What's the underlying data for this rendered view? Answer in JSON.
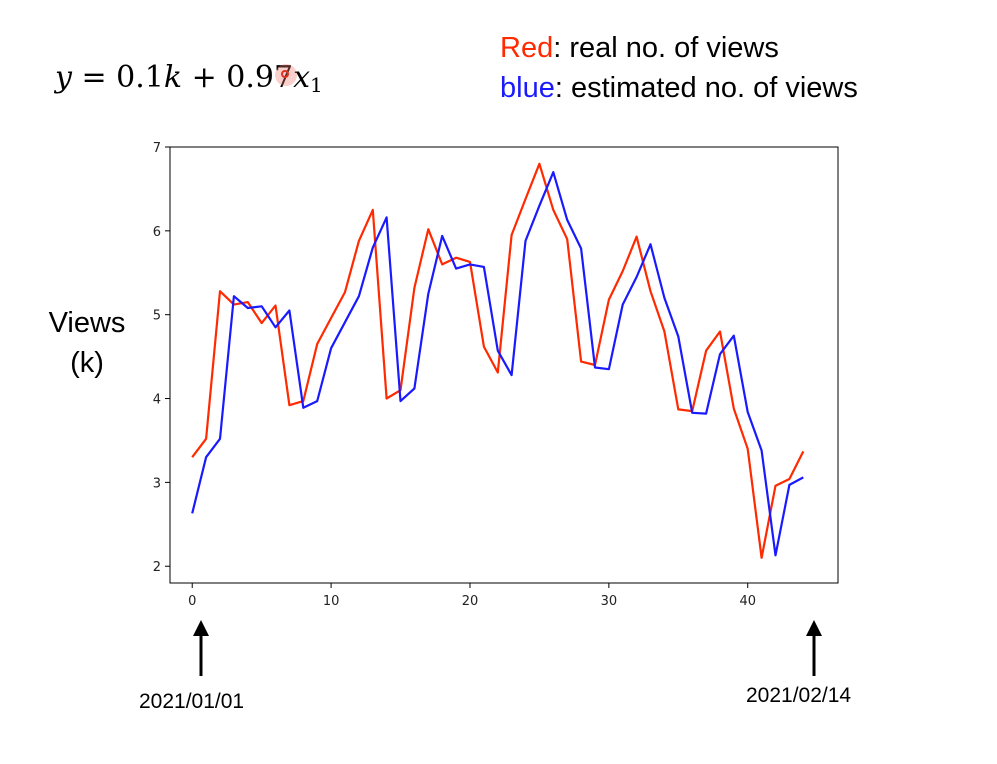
{
  "formula": {
    "y": "y",
    "eq": " = 0.1",
    "k": "k",
    "plus": " + 0.97",
    "x": "x",
    "sub": "1"
  },
  "legend": {
    "red_word": "Red",
    "red_rest": ": real no. of views",
    "blue_word": "blue",
    "blue_rest": ":  estimated no. of views"
  },
  "ylabel_line1": "Views",
  "ylabel_line2": "(k)",
  "dates": {
    "start": "2021/01/01",
    "end": "2021/02/14"
  },
  "colors": {
    "real": "#ff2a00",
    "estimated": "#1a1aff"
  },
  "chart_data": {
    "type": "line",
    "xlim": [
      -1.6,
      46.5
    ],
    "ylim": [
      1.8,
      7.0
    ],
    "xticks": [
      0,
      10,
      20,
      30,
      40
    ],
    "yticks": [
      2,
      3,
      4,
      5,
      6,
      7
    ],
    "series": [
      {
        "name": "Red",
        "color": "#ff2a00",
        "x": [
          0,
          1,
          2,
          3,
          4,
          5,
          6,
          7,
          8,
          9,
          10,
          11,
          12,
          13,
          14,
          15,
          16,
          17,
          18,
          19,
          20,
          21,
          22,
          23,
          24,
          25,
          26,
          27,
          28,
          29,
          30,
          31,
          32,
          33,
          34,
          35,
          36,
          37,
          38,
          39,
          40,
          41,
          42,
          43,
          44
        ],
        "values": [
          3.3,
          3.52,
          5.28,
          5.12,
          5.15,
          4.9,
          5.11,
          3.92,
          3.97,
          4.65,
          4.96,
          5.27,
          5.88,
          6.25,
          4.0,
          4.1,
          5.32,
          6.02,
          5.6,
          5.68,
          5.63,
          4.62,
          4.31,
          5.95,
          6.38,
          6.8,
          6.25,
          5.9,
          4.44,
          4.4,
          5.18,
          5.52,
          5.93,
          5.28,
          4.8,
          3.87,
          3.85,
          4.57,
          4.8,
          3.88,
          3.4,
          2.1,
          2.96,
          3.04,
          3.37
        ]
      },
      {
        "name": "blue",
        "color": "#1a1aff",
        "x": [
          0,
          1,
          2,
          3,
          4,
          5,
          6,
          7,
          8,
          9,
          10,
          11,
          12,
          13,
          14,
          15,
          16,
          17,
          18,
          19,
          20,
          21,
          22,
          23,
          24,
          25,
          26,
          27,
          28,
          29,
          30,
          31,
          32,
          33,
          34,
          35,
          36,
          37,
          38,
          39,
          40,
          41,
          42,
          43,
          44
        ],
        "values": [
          2.63,
          3.3,
          3.52,
          5.22,
          5.08,
          5.1,
          4.85,
          5.05,
          3.89,
          3.97,
          4.6,
          4.91,
          5.22,
          5.8,
          6.16,
          3.97,
          4.12,
          5.25,
          5.94,
          5.55,
          5.6,
          5.57,
          4.57,
          4.28,
          5.88,
          6.3,
          6.7,
          6.13,
          5.79,
          4.37,
          4.35,
          5.12,
          5.45,
          5.84,
          5.2,
          4.74,
          3.83,
          3.82,
          4.53,
          4.75,
          3.84,
          3.38,
          2.13,
          2.97,
          3.06
        ]
      }
    ]
  }
}
